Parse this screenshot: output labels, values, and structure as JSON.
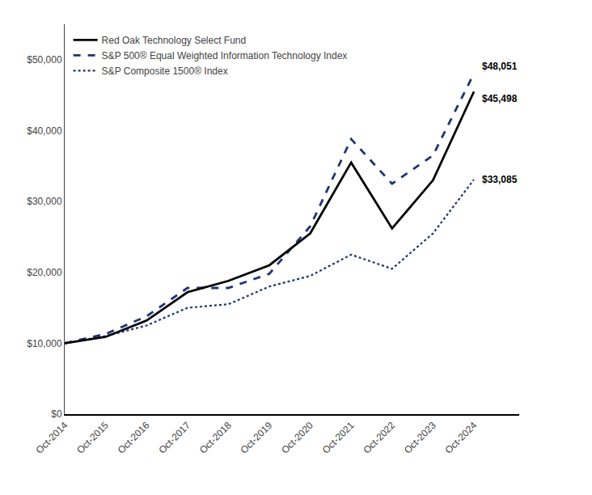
{
  "chart_data": {
    "type": "line",
    "categories": [
      "Oct-2014",
      "Oct-2015",
      "Oct-2016",
      "Oct-2017",
      "Oct-2018",
      "Oct-2019",
      "Oct-2020",
      "Oct-2021",
      "Oct-2022",
      "Oct-2023",
      "Oct-2024"
    ],
    "series": [
      {
        "name": "Red Oak Technology Select Fund",
        "color": "#000000",
        "line_style": "solid",
        "values": [
          10000,
          10900,
          13200,
          17200,
          18800,
          21000,
          25500,
          35500,
          26200,
          33000,
          45498
        ],
        "value_labels": [
          null,
          null,
          null,
          null,
          null,
          null,
          null,
          null,
          null,
          null,
          "$45,498"
        ]
      },
      {
        "name": "S&P 500® Equal Weighted Information Technology Index",
        "color": "#1e3570",
        "line_style": "dash",
        "values": [
          10000,
          11300,
          13800,
          17800,
          17800,
          19800,
          26500,
          38800,
          32500,
          36500,
          48051
        ],
        "value_labels": [
          null,
          null,
          null,
          null,
          null,
          null,
          null,
          null,
          null,
          null,
          "$48,051"
        ]
      },
      {
        "name": "S&P Composite 1500® Index",
        "color": "#1e3570",
        "line_style": "dot",
        "values": [
          10000,
          11000,
          12500,
          15000,
          15500,
          18000,
          19500,
          22500,
          20500,
          25500,
          33085
        ],
        "value_labels": [
          null,
          null,
          null,
          null,
          null,
          null,
          null,
          null,
          null,
          null,
          "$33,085"
        ]
      }
    ],
    "ylim": [
      0,
      55000
    ],
    "yticks": [
      {
        "value": 0,
        "label": "$0"
      },
      {
        "value": 10000,
        "label": "$10,000"
      },
      {
        "value": 20000,
        "label": "$20,000"
      },
      {
        "value": 30000,
        "label": "$30,000"
      },
      {
        "value": 40000,
        "label": "$40,000"
      },
      {
        "value": 50000,
        "label": "$50,000"
      }
    ],
    "grid": false,
    "legend": "upper left"
  }
}
